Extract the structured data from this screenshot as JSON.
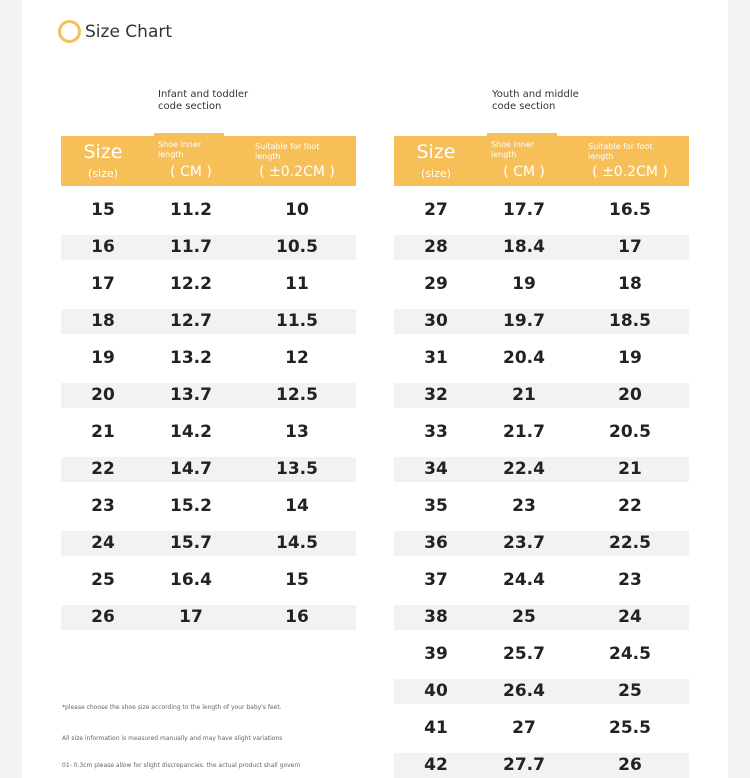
{
  "title": "Size Chart",
  "left": {
    "section": [
      "Infant and toddler",
      "code section"
    ],
    "header": {
      "size": "Size",
      "size_sub": "(size)",
      "inner": [
        "Shoe inner",
        "length"
      ],
      "inner_unit": "( CM )",
      "foot": [
        "Suitable for foot",
        "length"
      ],
      "foot_unit": "( ±0.2CM )"
    },
    "rows": [
      [
        "15",
        "11.2",
        "10"
      ],
      [
        "16",
        "11.7",
        "10.5"
      ],
      [
        "17",
        "12.2",
        "11"
      ],
      [
        "18",
        "12.7",
        "11.5"
      ],
      [
        "19",
        "13.2",
        "12"
      ],
      [
        "20",
        "13.7",
        "12.5"
      ],
      [
        "21",
        "14.2",
        "13"
      ],
      [
        "22",
        "14.7",
        "13.5"
      ],
      [
        "23",
        "15.2",
        "14"
      ],
      [
        "24",
        "15.7",
        "14.5"
      ],
      [
        "25",
        "16.4",
        "15"
      ],
      [
        "26",
        "17",
        "16"
      ]
    ]
  },
  "right": {
    "section": [
      "Youth and middle",
      "code section"
    ],
    "header": {
      "size": "Size",
      "size_sub": "(size)",
      "inner": [
        "Shoe inner",
        "length"
      ],
      "inner_unit": "( CM )",
      "foot": [
        "Suitable for foot",
        "length"
      ],
      "foot_unit": "( ±0.2CM )"
    },
    "rows": [
      [
        "27",
        "17.7",
        "16.5"
      ],
      [
        "28",
        "18.4",
        "17"
      ],
      [
        "29",
        "19",
        "18"
      ],
      [
        "30",
        "19.7",
        "18.5"
      ],
      [
        "31",
        "20.4",
        "19"
      ],
      [
        "32",
        "21",
        "20"
      ],
      [
        "33",
        "21.7",
        "20.5"
      ],
      [
        "34",
        "22.4",
        "21"
      ],
      [
        "35",
        "23",
        "22"
      ],
      [
        "36",
        "23.7",
        "22.5"
      ],
      [
        "37",
        "24.4",
        "23"
      ],
      [
        "38",
        "25",
        "24"
      ],
      [
        "39",
        "25.7",
        "24.5"
      ],
      [
        "40",
        "26.4",
        "25"
      ],
      [
        "41",
        "27",
        "25.5"
      ],
      [
        "42",
        "27.7",
        "26"
      ]
    ]
  },
  "notes": [
    "*please choose the shoe size according to the length of your baby's feet.",
    "All size information is measured manually and may have slight variations",
    "01- 0.3cm please allow for slight discrepancies. the actual product shall govern"
  ]
}
